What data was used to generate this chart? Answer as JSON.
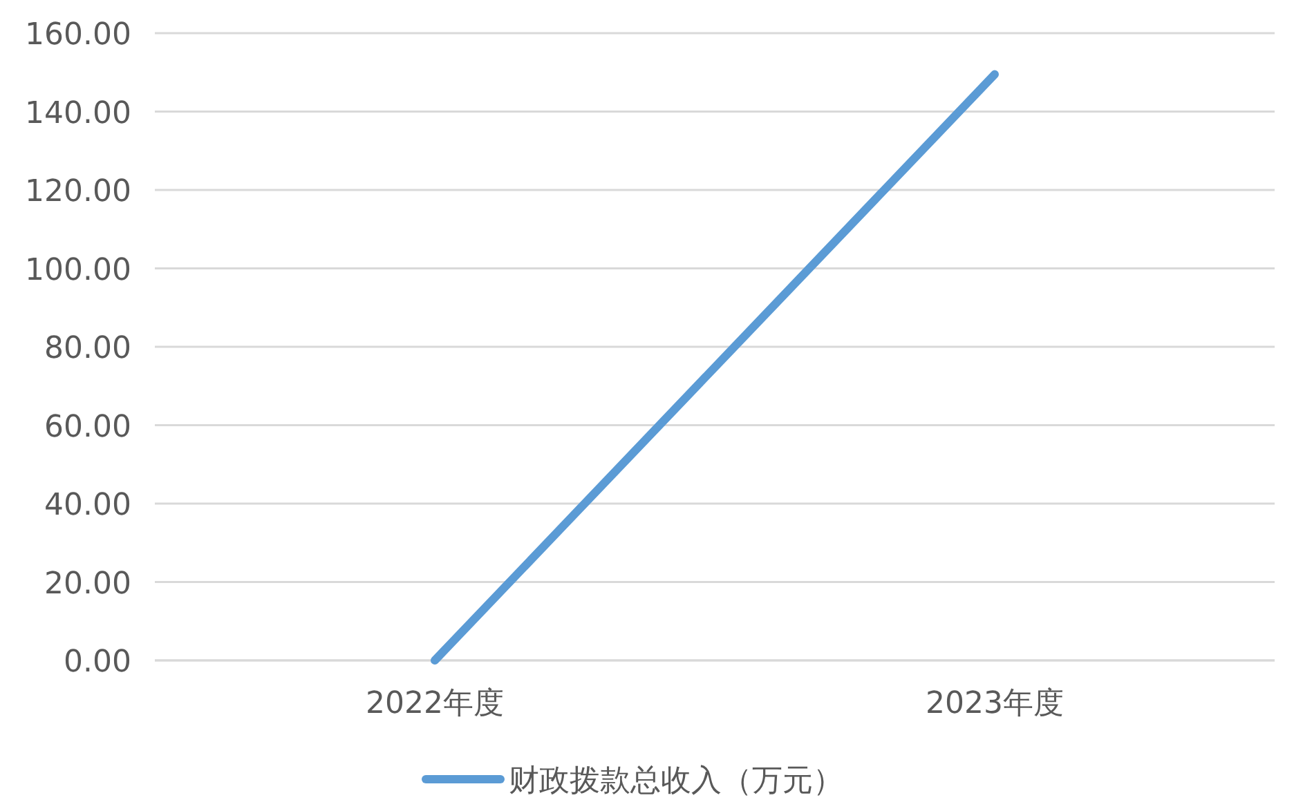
{
  "chart_data": {
    "type": "line",
    "categories": [
      "2022年度",
      "2023年度"
    ],
    "series": [
      {
        "name": "财政拨款总收入（万元）",
        "color": "#5b9bd5",
        "values": [
          0,
          149.5
        ]
      }
    ],
    "ylim": [
      0,
      160
    ],
    "yticks": [
      {
        "value": 0,
        "label": "0.00"
      },
      {
        "value": 20,
        "label": "20.00"
      },
      {
        "value": 40,
        "label": "40.00"
      },
      {
        "value": 60,
        "label": "60.00"
      },
      {
        "value": 80,
        "label": "80.00"
      },
      {
        "value": 100,
        "label": "100.00"
      },
      {
        "value": 120,
        "label": "120.00"
      },
      {
        "value": 140,
        "label": "140.00"
      },
      {
        "value": 160,
        "label": "160.00"
      }
    ],
    "grid": "y",
    "legend": "bottom",
    "marker": "none",
    "line_style": "solid"
  }
}
